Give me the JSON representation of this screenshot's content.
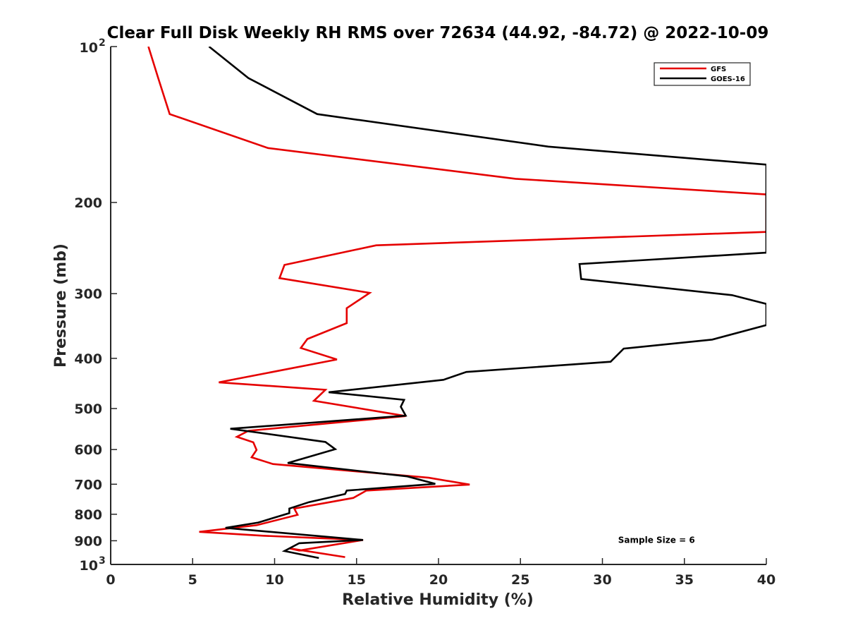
{
  "chart_data": {
    "type": "line",
    "title": "Clear Full Disk Weekly RH RMS over 72634 (44.92, -84.72) @ 2022-10-09",
    "xlabel": "Relative Humidity (%)",
    "ylabel": "Pressure (mb)",
    "xlim": [
      0,
      40
    ],
    "ylim": [
      100,
      1000
    ],
    "yscale": "log",
    "y_reversed": true,
    "grid": false,
    "legend_position": "top-right",
    "x_ticks": [
      {
        "value": 0,
        "label": "0"
      },
      {
        "value": 5,
        "label": "5"
      },
      {
        "value": 10,
        "label": "10"
      },
      {
        "value": 15,
        "label": "15"
      },
      {
        "value": 20,
        "label": "20"
      },
      {
        "value": 25,
        "label": "25"
      },
      {
        "value": 30,
        "label": "30"
      },
      {
        "value": 35,
        "label": "35"
      },
      {
        "value": 40,
        "label": "40"
      }
    ],
    "y_ticks": [
      {
        "value": 100,
        "label": "10",
        "exponent": "2"
      },
      {
        "value": 200,
        "label": "200"
      },
      {
        "value": 300,
        "label": "300"
      },
      {
        "value": 400,
        "label": "400"
      },
      {
        "value": 500,
        "label": "500"
      },
      {
        "value": 600,
        "label": "600"
      },
      {
        "value": 700,
        "label": "700"
      },
      {
        "value": 800,
        "label": "800"
      },
      {
        "value": 900,
        "label": "900"
      },
      {
        "value": 1000,
        "label": "10",
        "exponent": "3"
      }
    ],
    "series": [
      {
        "name": "GFS",
        "color": "#e50000",
        "x": [
          2.3,
          2.9,
          3.6,
          9.6,
          24.7,
          40.0,
          40.0,
          16.2,
          10.6,
          10.3,
          15.8,
          14.4,
          14.4,
          12.0,
          11.6,
          13.8,
          6.6,
          13.1,
          12.4,
          18.0,
          8.4,
          7.7,
          8.7,
          8.9,
          8.6,
          9.9,
          19.4,
          21.9,
          15.6,
          14.8,
          11.2,
          11.4,
          8.9,
          5.4,
          9.3,
          15.4,
          11.5,
          10.9,
          14.3
        ],
        "y": [
          100,
          115,
          135,
          157,
          180,
          193,
          228,
          242,
          264,
          280,
          299,
          320,
          342,
          367,
          382,
          402,
          445,
          460,
          483,
          517,
          552,
          567,
          581,
          601,
          621,
          640,
          680,
          701,
          720,
          744,
          780,
          802,
          840,
          865,
          880,
          897,
          940,
          931,
          968
        ]
      },
      {
        "name": "GOES-16",
        "color": "#000000",
        "x": [
          6.0,
          8.4,
          12.6,
          26.7,
          40.0,
          40.0,
          28.6,
          28.7,
          37.9,
          40.0,
          40.0,
          36.7,
          31.3,
          30.5,
          21.7,
          20.3,
          13.3,
          17.9,
          17.7,
          18.0,
          7.3,
          13.1,
          13.7,
          10.8,
          18.1,
          19.8,
          14.4,
          14.3,
          12.1,
          10.9,
          10.9,
          9.0,
          7.0,
          15.4,
          11.5,
          10.6,
          12.7
        ],
        "y": [
          100,
          115,
          135,
          156,
          169,
          250,
          263,
          281,
          302,
          314,
          345,
          368,
          383,
          406,
          425,
          440,
          465,
          481,
          496,
          516,
          547,
          580,
          599,
          637,
          676,
          699,
          720,
          731,
          758,
          780,
          796,
          830,
          850,
          897,
          910,
          942,
          972
        ]
      }
    ],
    "annotations": [
      {
        "text": "Sample Size = 6",
        "x": 33.3,
        "y": 898
      }
    ]
  }
}
